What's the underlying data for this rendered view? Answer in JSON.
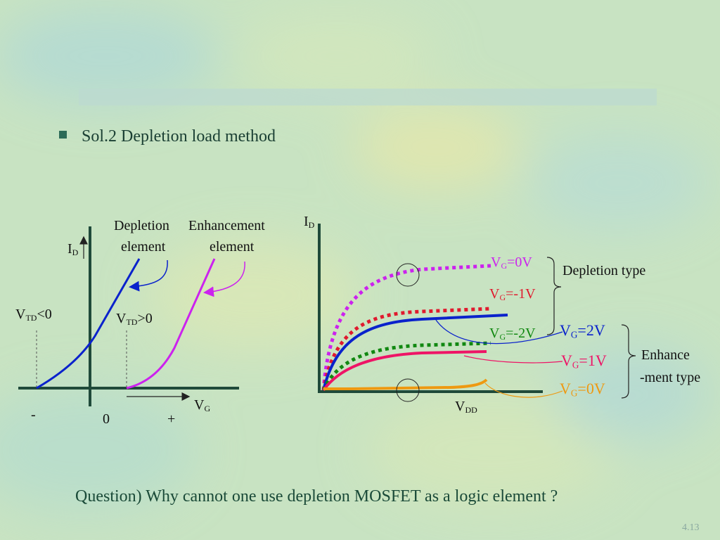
{
  "heading": "Sol.2  Depletion load method",
  "left_plot": {
    "y_axis_label": "I",
    "y_axis_sub": "D",
    "x_axis_label": "V",
    "x_axis_sub": "G",
    "depletion_label_line1": "Depletion",
    "depletion_label_line2": "element",
    "enhancement_label_line1": "Enhancement",
    "enhancement_label_line2": "element",
    "vtd_neg_main": "V",
    "vtd_neg_sub": "TD",
    "vtd_neg_rest": "<0",
    "vtd_pos_main": "V",
    "vtd_pos_sub": "TD",
    "vtd_pos_rest": ">0",
    "tick_minus": "-",
    "tick_zero": "0",
    "tick_plus": "+"
  },
  "right_plot": {
    "y_axis_label": "I",
    "y_axis_sub": "D",
    "x_axis_label": "V",
    "x_axis_sub": "DD",
    "depletion_group_label": "Depletion type",
    "enhancement_group_line1": "Enhance",
    "enhancement_group_line2": "-ment type",
    "curves": [
      {
        "main": "V",
        "sub": "G",
        "rest": "=0V",
        "color": "#cc22ee"
      },
      {
        "main": "V",
        "sub": "G",
        "rest": "=-1V",
        "color": "#e01a2e"
      },
      {
        "main": "V",
        "sub": "G",
        "rest": "=-2V",
        "color": "#118811"
      },
      {
        "main": "V",
        "sub": "G",
        "rest": "=2V",
        "color": "#0a22cc"
      },
      {
        "main": "V",
        "sub": "G",
        "rest": "=1V",
        "color": "#ee1466"
      },
      {
        "main": "V",
        "sub": "G",
        "rest": "=0V",
        "color": "#ee9911"
      }
    ]
  },
  "question": "Question) Why cannot one use depletion MOSFET as a logic element ?",
  "page_number": "4.13",
  "colors": {
    "axis": "#1f4a3a",
    "depletion_curve": "#0a22cc",
    "enhancement_curve": "#cc22ee",
    "heading": "#1a3f33"
  }
}
